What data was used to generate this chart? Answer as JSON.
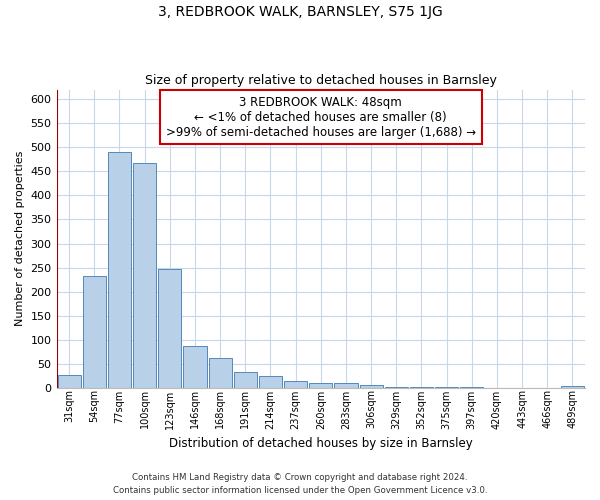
{
  "title": "3, REDBROOK WALK, BARNSLEY, S75 1JG",
  "subtitle": "Size of property relative to detached houses in Barnsley",
  "xlabel": "Distribution of detached houses by size in Barnsley",
  "ylabel": "Number of detached properties",
  "bar_labels": [
    "31sqm",
    "54sqm",
    "77sqm",
    "100sqm",
    "123sqm",
    "146sqm",
    "168sqm",
    "191sqm",
    "214sqm",
    "237sqm",
    "260sqm",
    "283sqm",
    "306sqm",
    "329sqm",
    "352sqm",
    "375sqm",
    "397sqm",
    "420sqm",
    "443sqm",
    "466sqm",
    "489sqm"
  ],
  "bar_heights": [
    27,
    233,
    490,
    467,
    248,
    88,
    62,
    33,
    24,
    14,
    11,
    10,
    6,
    1,
    1,
    1,
    1,
    0,
    0,
    0,
    4
  ],
  "bar_color": "#b8d0e8",
  "bar_edge_color": "#5588bb",
  "annotation_box_text": "3 REDBROOK WALK: 48sqm\n← <1% of detached houses are smaller (8)\n>99% of semi-detached houses are larger (1,688) →",
  "annotation_box_edge_color": "#cc0000",
  "marker_line_color": "#990000",
  "ylim": [
    0,
    620
  ],
  "yticks": [
    0,
    50,
    100,
    150,
    200,
    250,
    300,
    350,
    400,
    450,
    500,
    550,
    600
  ],
  "footer_line1": "Contains HM Land Registry data © Crown copyright and database right 2024.",
  "footer_line2": "Contains public sector information licensed under the Open Government Licence v3.0.",
  "bg_color": "#ffffff",
  "grid_color": "#c8d8e8"
}
